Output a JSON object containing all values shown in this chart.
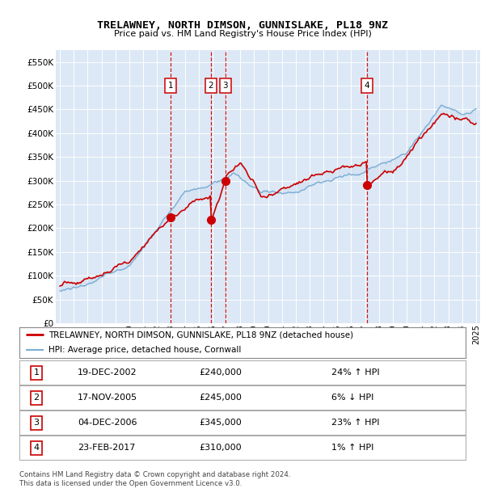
{
  "title": "TRELAWNEY, NORTH DIMSON, GUNNISLAKE, PL18 9NZ",
  "subtitle": "Price paid vs. HM Land Registry's House Price Index (HPI)",
  "plot_bg_color": "#dce8f5",
  "ylim": [
    0,
    575000
  ],
  "yticks": [
    0,
    50000,
    100000,
    150000,
    200000,
    250000,
    300000,
    350000,
    400000,
    450000,
    500000,
    550000
  ],
  "legend_line1": "TRELAWNEY, NORTH DIMSON, GUNNISLAKE, PL18 9NZ (detached house)",
  "legend_line2": "HPI: Average price, detached house, Cornwall",
  "sale_points": [
    {
      "label": "1",
      "date": "19-DEC-2002",
      "price": 240000,
      "pct": "24%",
      "dir": "↑",
      "x": 2002.96
    },
    {
      "label": "2",
      "date": "17-NOV-2005",
      "price": 245000,
      "pct": "6%",
      "dir": "↓",
      "x": 2005.88
    },
    {
      "label": "3",
      "date": "04-DEC-2006",
      "price": 345000,
      "pct": "23%",
      "dir": "↑",
      "x": 2006.92
    },
    {
      "label": "4",
      "date": "23-FEB-2017",
      "price": 310000,
      "pct": "1%",
      "dir": "↑",
      "x": 2017.14
    }
  ],
  "footer1": "Contains HM Land Registry data © Crown copyright and database right 2024.",
  "footer2": "This data is licensed under the Open Government Licence v3.0.",
  "red_color": "#cc0000",
  "blue_color": "#7aadd4",
  "fill_color": "#c8dcf0",
  "dashed_color": "#cc0000"
}
